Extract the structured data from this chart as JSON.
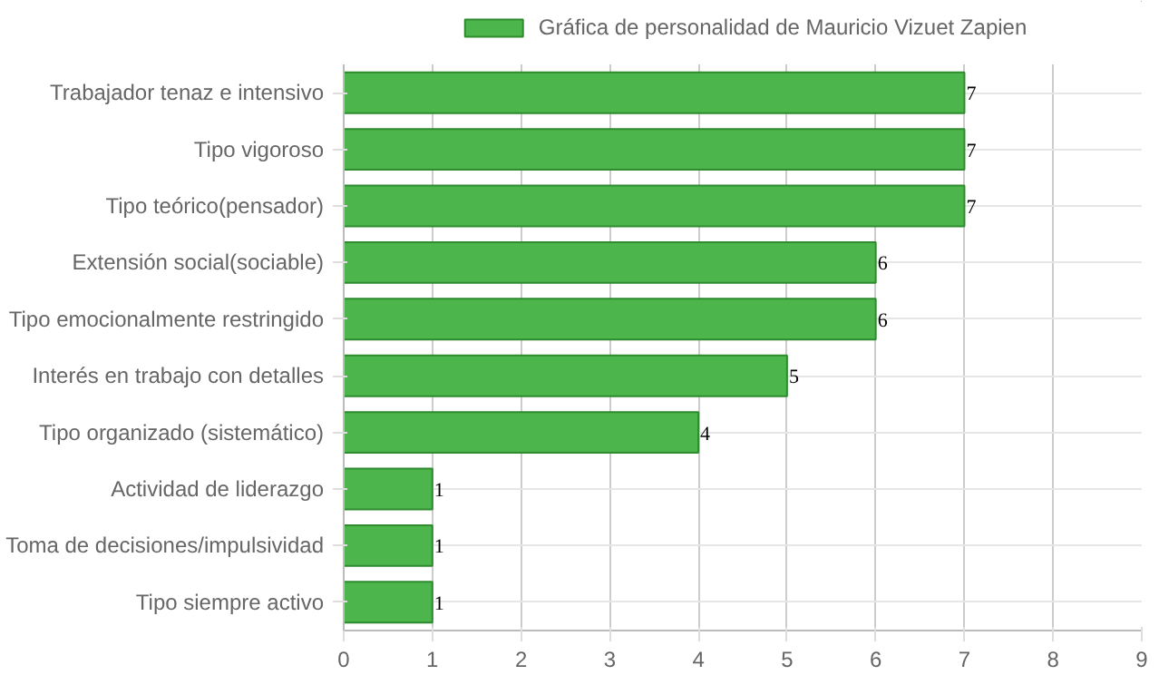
{
  "chart_data": {
    "type": "bar",
    "orientation": "horizontal",
    "categories": [
      "Trabajador tenaz e intensivo",
      "Tipo vigoroso",
      "Tipo teórico(pensador)",
      "Extensión social(sociable)",
      "Tipo emocionalmente restringido",
      "Interés en trabajo con detalles",
      "Tipo organizado (sistemático)",
      "Actividad de liderazgo",
      "Toma de decisiones/impulsividad",
      "Tipo siempre activo"
    ],
    "series": [
      {
        "name": "Gráfica de personalidad de Mauricio Vizuet Zapien",
        "color": "#4cb54c",
        "values": [
          7,
          7,
          7,
          6,
          6,
          5,
          4,
          1,
          1,
          1
        ]
      }
    ],
    "xlim": [
      0,
      9
    ],
    "xticks": [
      0,
      1,
      2,
      3,
      4,
      5,
      6,
      7,
      8,
      9
    ],
    "grid": true,
    "legend": "top",
    "data_labels": true
  }
}
